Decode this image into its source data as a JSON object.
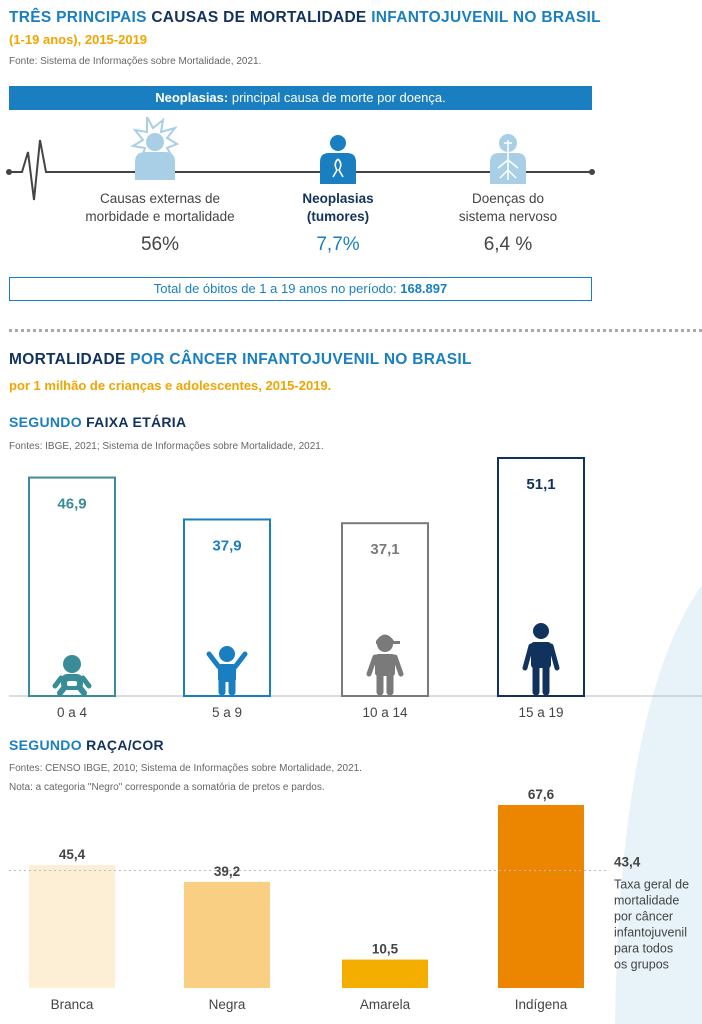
{
  "section1": {
    "title_part1": "TRÊS PRINCIPAIS",
    "title_part2": "CAUSAS DE MORTALIDADE",
    "title_part3": "INFANTOJUVENIL NO BRASIL",
    "subtitle": "(1-19 anos), 2015-2019",
    "source": "Fonte: Sistema de Informações sobre Mortalidade, 2021.",
    "banner_bold": "Neoplasias:",
    "banner_text": " principal causa de morte por doença.",
    "causes": [
      {
        "line1": "Causas externas de",
        "line2": "morbidade e mortalidade",
        "pct": "56%",
        "icon": "person-impact-icon",
        "color": "#a9cfe6"
      },
      {
        "line1": "Neoplasias",
        "line2": "(tumores)",
        "pct": "7,7%",
        "icon": "person-ribbon-icon",
        "color": "#1a7fc1"
      },
      {
        "line1": "Doenças do",
        "line2": "sistema nervoso",
        "pct": "6,4 %",
        "icon": "person-nervous-system-icon",
        "color": "#a9cfe6"
      }
    ],
    "total_text": "Total de óbitos de 1 a 19 anos no período: ",
    "total_value": "168.897"
  },
  "section2": {
    "title_part1": "MORTALIDADE",
    "title_part2": "POR CÂNCER INFANTOJUVENIL NO BRASIL",
    "subtitle": "por 1 milhão de crianças e adolescentes, 2015-2019."
  },
  "chart_age": {
    "heading_part1": "SEGUNDO",
    "heading_part2": "FAIXA ETÁRIA",
    "source": "Fontes: IBGE, 2021; Sistema de Informações sobre Mortalidade, 2021."
  },
  "chart_race": {
    "heading_part1": "SEGUNDO",
    "heading_part2": "RAÇA/COR",
    "source": "Fontes: CENSO IBGE, 2010; Sistema de Informações sobre Mortalidade, 2021.",
    "note": "Nota: a categoria \"Negro\" corresponde a somatória de pretos e pardos.",
    "reference_value": "43,4",
    "reference_text": [
      "Taxa geral de",
      "mortalidade",
      "por câncer",
      "infantojuvenil",
      "para todos",
      "os grupos"
    ]
  },
  "chart_data": [
    {
      "type": "bar",
      "categories": [
        "0 a 4",
        "5 a 9",
        "10 a 14",
        "15 a 19"
      ],
      "values": [
        46.9,
        37.9,
        37.1,
        51.1
      ],
      "labels": [
        "46,9",
        "37,9",
        "37,1",
        "51,1"
      ],
      "colors": [
        "#3a8c98",
        "#1a7fc1",
        "#7a7a7a",
        "#12325e"
      ],
      "icons": [
        "baby-icon",
        "child-arms-up-icon",
        "teen-cap-icon",
        "adult-icon"
      ],
      "title": "SEGUNDO FAIXA ETÁRIA"
    },
    {
      "type": "bar",
      "categories": [
        "Branca",
        "Negra",
        "Amarela",
        "Indígena"
      ],
      "values": [
        45.4,
        39.2,
        10.5,
        67.6
      ],
      "labels": [
        "45,4",
        "39,2",
        "10,5",
        "67,6"
      ],
      "colors": [
        "#fdefd6",
        "#f9cf83",
        "#f4ae00",
        "#ec8500"
      ],
      "reference_line": 43.4,
      "title": "SEGUNDO RAÇA/COR"
    }
  ]
}
